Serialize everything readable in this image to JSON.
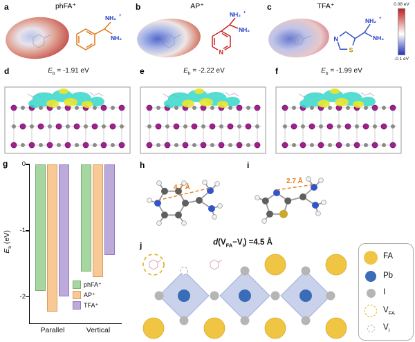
{
  "figure": {
    "plus": "+"
  },
  "eb": {
    "symbol": "E",
    "sub": "b"
  },
  "colorbar": {
    "max_label": "0.08 eV",
    "min_label": "-0.1 eV",
    "max_color": "#c22020",
    "min_color": "#2233bb"
  },
  "panels": {
    "a": {
      "label": "a",
      "title": "phFA⁺",
      "nh2_top": "NH₂",
      "nh2_bottom": "NH₂"
    },
    "b": {
      "label": "b",
      "title": "AP⁺",
      "ring_n": "N",
      "nh2_top": "NH₂",
      "nh2_bottom": "NH₂"
    },
    "c": {
      "label": "c",
      "title": "TFA⁺",
      "ring_s": "S",
      "ring_n": "N",
      "nh2_top": "NH₂",
      "nh2_bottom": "NH₂"
    },
    "d": {
      "label": "d",
      "eb_value": " = -1.91 eV"
    },
    "e": {
      "label": "e",
      "eb_value": " = -2.22 eV"
    },
    "f": {
      "label": "f",
      "eb_value": " = -1.99 eV"
    },
    "g": {
      "label": "g"
    },
    "h": {
      "label": "h",
      "distance": "4.7 Å"
    },
    "i": {
      "label": "i",
      "distance": "2.7 Å"
    },
    "j": {
      "label": "j",
      "distance_label": {
        "d": "d",
        "p1": "(V",
        "s1": "FA",
        "p2": "−V",
        "s2": "I",
        "p3": ") =4.5 Å"
      },
      "legend": {
        "items": [
          {
            "name": "FA",
            "sub": ""
          },
          {
            "name": "Pb",
            "sub": ""
          },
          {
            "name": "I",
            "sub": ""
          },
          {
            "name": "V",
            "sub": "FA"
          },
          {
            "name": "V",
            "sub": "I"
          }
        ]
      }
    }
  },
  "chart_data": {
    "type": "bar",
    "categories": [
      "Parallel",
      "Vertical"
    ],
    "series": [
      {
        "name": "phFA⁺",
        "color": "#a7d7a0",
        "edge": "#79ad72",
        "values": [
          -1.91,
          -1.62
        ]
      },
      {
        "name": "AP⁺",
        "color": "#f8c995",
        "edge": "#d69c5f",
        "values": [
          -2.22,
          -1.7
        ]
      },
      {
        "name": "TFA⁺",
        "color": "#bcaadb",
        "edge": "#9379bd",
        "values": [
          -1.99,
          -1.37
        ]
      }
    ],
    "title": "",
    "xlabel": "",
    "ylabel": "Eb (eV)",
    "ylabel_symbol": "E",
    "ylabel_sub": "b",
    "ylabel_unit": " (eV)",
    "ylim": [
      -2.4,
      0
    ],
    "yticks": [
      0,
      -1,
      -2
    ],
    "legend_position": "lower right",
    "grid": false
  }
}
